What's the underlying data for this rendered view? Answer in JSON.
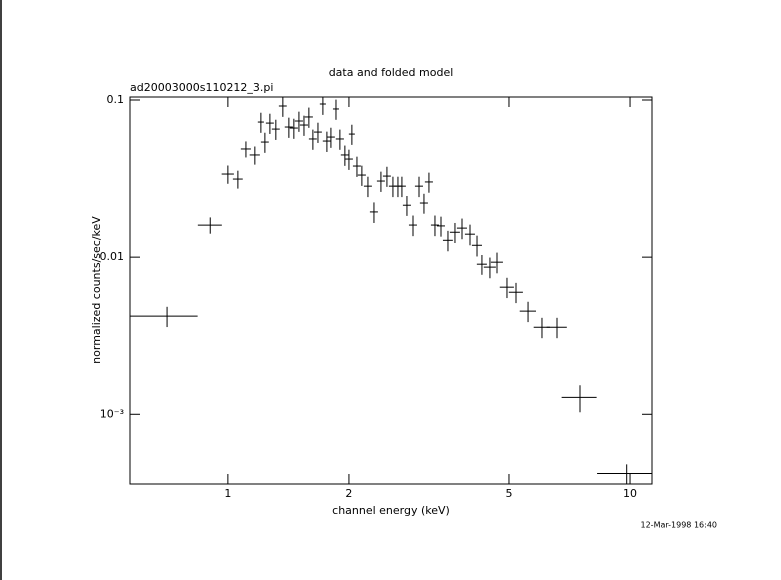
{
  "chart_data": {
    "type": "scatter",
    "title": "data and folded model",
    "subtitle": "ad20003000s110212_3.pi",
    "x_label": "channel energy (keV)",
    "y_label": "normalized counts/sec/keV",
    "timestamp": "12-Mar-1998 16:40",
    "log_x": true,
    "log_y": true,
    "color": "#000000",
    "xlim": [
      0.571,
      11.34
    ],
    "ylim": [
      0.00036,
      0.1045
    ],
    "xticks": [
      1,
      2,
      5,
      10
    ],
    "yticks": [
      0.1,
      0.01,
      {
        "value": 0.001,
        "label": "10⁻³"
      }
    ],
    "x": [
      0.706,
      0.904,
      1.0,
      1.059,
      1.109,
      1.167,
      1.208,
      1.236,
      1.272,
      1.316,
      1.37,
      1.418,
      1.459,
      1.502,
      1.546,
      1.59,
      1.627,
      1.675,
      1.723,
      1.763,
      1.804,
      1.857,
      1.899,
      1.954,
      2.0,
      2.034,
      2.094,
      2.154,
      2.23,
      2.308,
      2.402,
      2.486,
      2.573,
      2.648,
      2.709,
      2.788,
      2.886,
      2.987,
      3.073,
      3.162,
      3.273,
      3.388,
      3.526,
      3.67,
      3.821,
      4.0,
      4.164,
      4.283,
      4.484,
      4.669,
      4.943,
      5.205,
      5.577,
      6.04,
      6.583,
      7.509,
      9.81
    ],
    "xerr": [
      0.135,
      0.062,
      0.035,
      0.03,
      0.032,
      0.034,
      0.021,
      0.028,
      0.029,
      0.03,
      0.031,
      0.033,
      0.034,
      0.035,
      0.036,
      0.037,
      0.037,
      0.038,
      0.03,
      0.041,
      0.041,
      0.032,
      0.044,
      0.045,
      0.046,
      0.035,
      0.048,
      0.05,
      0.051,
      0.053,
      0.055,
      0.057,
      0.059,
      0.061,
      0.062,
      0.064,
      0.066,
      0.069,
      0.071,
      0.073,
      0.075,
      0.078,
      0.1,
      0.105,
      0.11,
      0.115,
      0.12,
      0.123,
      0.155,
      0.161,
      0.2,
      0.21,
      0.26,
      0.28,
      0.38,
      0.75,
      1.53
    ],
    "values": [
      0.00421,
      0.016,
      0.0338,
      0.0314,
      0.0488,
      0.0447,
      0.0724,
      0.054,
      0.0713,
      0.0653,
      0.0916,
      0.0673,
      0.0663,
      0.0735,
      0.0693,
      0.078,
      0.0565,
      0.0625,
      0.0943,
      0.0548,
      0.0581,
      0.0877,
      0.0565,
      0.0447,
      0.0421,
      0.0607,
      0.038,
      0.0333,
      0.0283,
      0.0194,
      0.0305,
      0.0328,
      0.0283,
      0.0283,
      0.0283,
      0.0214,
      0.016,
      0.0283,
      0.0221,
      0.0301,
      0.016,
      0.0158,
      0.0128,
      0.0144,
      0.0153,
      0.014,
      0.0119,
      0.00902,
      0.00864,
      0.00929,
      0.00644,
      0.00598,
      0.00453,
      0.00358,
      0.00358,
      0.00128,
      0.00042
    ],
    "yerr": [
      0.00062,
      0.0019,
      0.0045,
      0.0041,
      0.0057,
      0.0059,
      0.0106,
      0.0079,
      0.0105,
      0.0096,
      0.0135,
      0.0099,
      0.0097,
      0.0108,
      0.0102,
      0.0115,
      0.0083,
      0.0092,
      0.0139,
      0.0081,
      0.0085,
      0.0129,
      0.0083,
      0.0066,
      0.0062,
      0.0089,
      0.0056,
      0.0049,
      0.0042,
      0.0029,
      0.0045,
      0.0048,
      0.0042,
      0.0042,
      0.0042,
      0.0031,
      0.0024,
      0.0042,
      0.0032,
      0.0044,
      0.0024,
      0.0023,
      0.0019,
      0.0021,
      0.0023,
      0.0021,
      0.0018,
      0.0013,
      0.0013,
      0.0014,
      0.00095,
      0.00088,
      0.00067,
      0.00053,
      0.00053,
      0.00025,
      6e-05
    ]
  }
}
